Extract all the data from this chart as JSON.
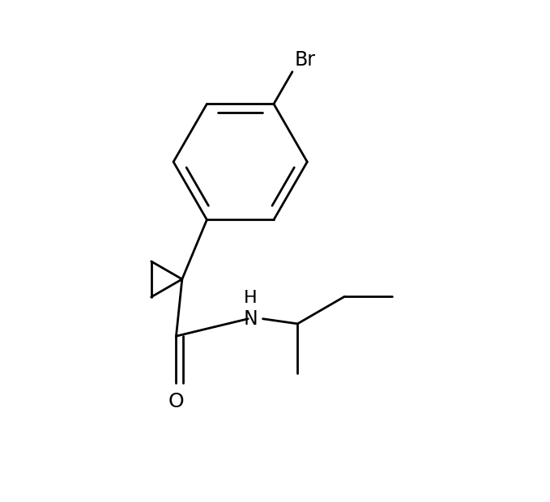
{
  "background_color": "#ffffff",
  "line_color": "#000000",
  "line_width": 2.0,
  "font_size": 17,
  "label_Br": "Br",
  "label_O": "O",
  "label_H": "H",
  "label_N": "N"
}
